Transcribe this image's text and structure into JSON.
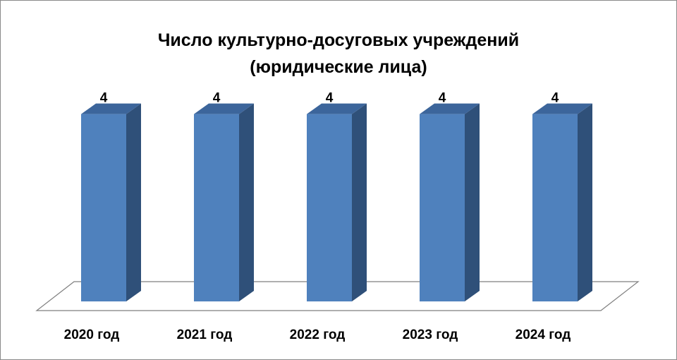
{
  "chart_data": {
    "type": "bar",
    "title_line1": "Число культурно-досуговых учреждений",
    "title_line2": "(юридические лица)",
    "categories": [
      "2020 год",
      "2021 год",
      "2022 год",
      "2023 год",
      "2024 год"
    ],
    "values": [
      4,
      4,
      4,
      4,
      4
    ],
    "data_labels": [
      "4",
      "4",
      "4",
      "4",
      "4"
    ],
    "xlabel": "",
    "ylabel": "",
    "ylim": [
      0,
      4.1
    ],
    "grid": false,
    "legend": "none",
    "style": "3d-column",
    "colors": {
      "bar_front": "#4f81bd",
      "bar_top": "#3c659b",
      "bar_side": "#2f5079",
      "floor_stroke": "#7f7f7f"
    }
  }
}
